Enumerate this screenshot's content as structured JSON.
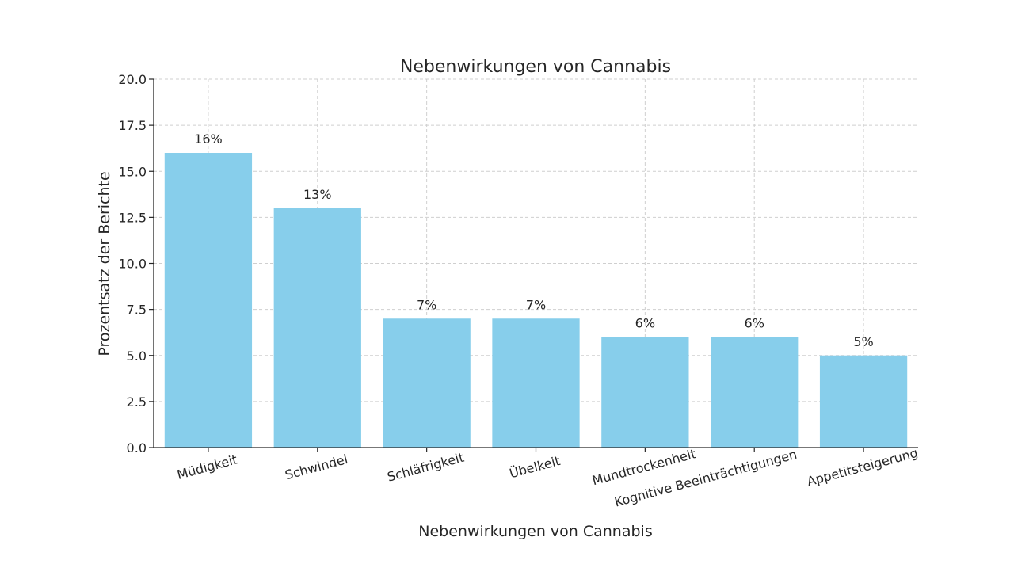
{
  "chart_data": {
    "type": "bar",
    "title": "Nebenwirkungen von Cannabis",
    "xlabel": "Nebenwirkungen von Cannabis",
    "ylabel": "Prozentsatz der Berichte",
    "categories": [
      "Müdigkeit",
      "Schwindel",
      "Schläfrigkeit",
      "Übelkeit",
      "Mundtrockenheit",
      "Kognitive Beeinträchtigungen",
      "Appetitsteigerung"
    ],
    "values": [
      16,
      13,
      7,
      7,
      6,
      6,
      5
    ],
    "data_labels": [
      "16%",
      "13%",
      "7%",
      "7%",
      "6%",
      "6%",
      "5%"
    ],
    "ylim": [
      0,
      20
    ],
    "yticks": [
      "0.0",
      "2.5",
      "5.0",
      "7.5",
      "10.0",
      "12.5",
      "15.0",
      "17.5",
      "20.0"
    ],
    "grid": true,
    "bar_color": "#87CEEB"
  }
}
